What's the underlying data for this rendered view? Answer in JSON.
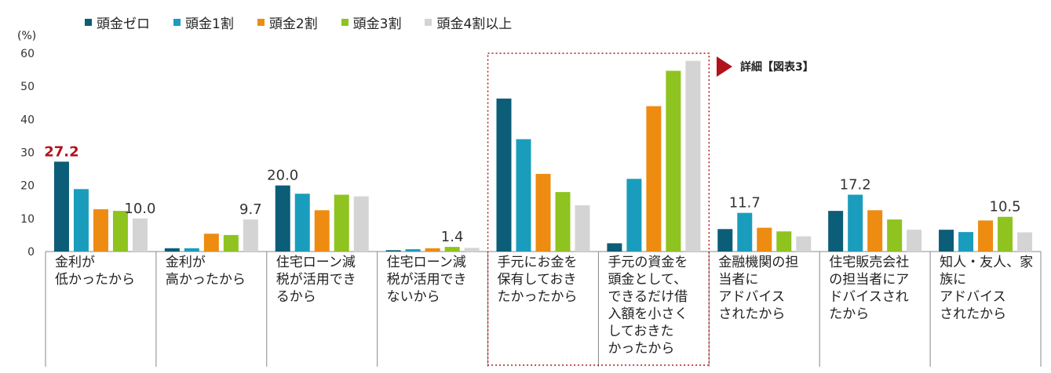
{
  "chart_data": {
    "type": "bar",
    "ylabel": "(%)",
    "ylim": [
      0,
      60
    ],
    "yticks": [
      0,
      10,
      20,
      30,
      40,
      50,
      60
    ],
    "categories": [
      "金利が\n低かったから",
      "金利が\n高かったから",
      "住宅ローン減\n税が活用でき\nるから",
      "住宅ローン減\n税が活用でき\nないから",
      "手元にお金を\n保有しておき\nたかったから",
      "手元の資金を\n頭金として、\nできるだけ借\n入額を小さく\nしておきた\nかったから",
      "金融機関の担\n当者に\nアドバイス\nされたから",
      "住宅販売会社\nの担当者にア\nドバイスされ\nたから",
      "知人・友人、家\n族に\nアドバイス\nされたから"
    ],
    "series": [
      {
        "name": "頭金ゼロ",
        "color": "#0b5d78",
        "values": [
          27.2,
          1.0,
          20.0,
          0.4,
          46.3,
          2.5,
          6.8,
          12.3,
          6.6
        ]
      },
      {
        "name": "頭金1割",
        "color": "#1a9dbc",
        "values": [
          18.9,
          1.0,
          17.5,
          0.7,
          34.0,
          22.0,
          11.7,
          17.2,
          5.9
        ]
      },
      {
        "name": "頭金2割",
        "color": "#ee8b11",
        "values": [
          12.8,
          5.4,
          12.5,
          1.0,
          23.5,
          44.0,
          7.2,
          12.5,
          9.4
        ]
      },
      {
        "name": "頭金3割",
        "color": "#8fc31f",
        "values": [
          12.3,
          5.0,
          17.2,
          1.4,
          18.0,
          54.7,
          6.1,
          9.7,
          10.5
        ]
      },
      {
        "name": "頭金4割以上",
        "color": "#d4d4d4",
        "values": [
          10.0,
          9.7,
          16.7,
          1.1,
          14.0,
          57.7,
          4.6,
          6.6,
          5.8
        ]
      }
    ],
    "data_labels": [
      {
        "category": 0,
        "series": 0,
        "text": "27.2",
        "color": "#b3121b"
      },
      {
        "category": 0,
        "series": 4,
        "text": "10.0",
        "color": "#333333"
      },
      {
        "category": 1,
        "series": 4,
        "text": "9.7",
        "color": "#333333"
      },
      {
        "category": 2,
        "series": 0,
        "text": "20.0",
        "color": "#333333"
      },
      {
        "category": 3,
        "series": 3,
        "text": "1.4",
        "color": "#333333"
      },
      {
        "category": 6,
        "series": 1,
        "text": "11.7",
        "color": "#333333"
      },
      {
        "category": 7,
        "series": 1,
        "text": "17.2",
        "color": "#333333"
      },
      {
        "category": 8,
        "series": 3,
        "text": "10.5",
        "color": "#333333"
      }
    ],
    "highlight": {
      "categories": [
        4,
        5
      ],
      "style": "dotted-red"
    },
    "annotation": "詳細【図表3】"
  }
}
